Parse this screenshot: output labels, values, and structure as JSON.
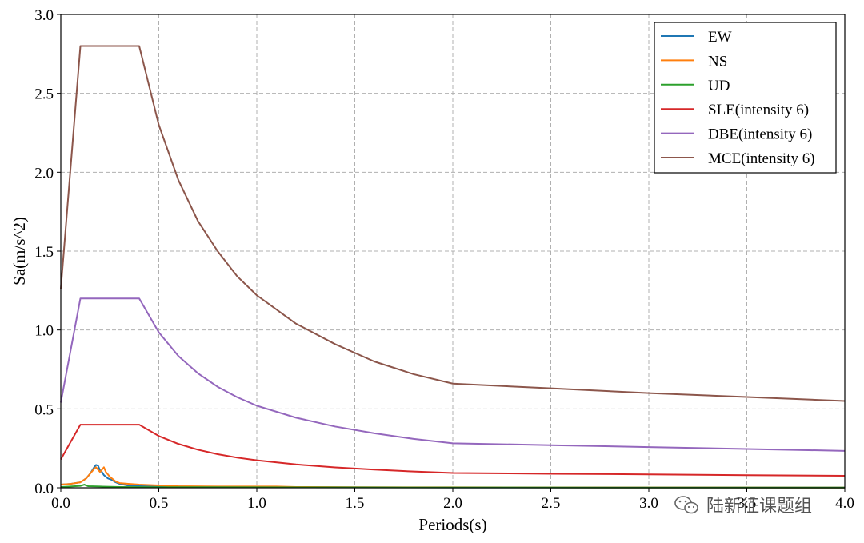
{
  "chart_data": {
    "type": "line",
    "xlabel": "Periods(s)",
    "ylabel": "Sa(m/s^2)",
    "xlim": [
      0.0,
      4.0
    ],
    "ylim": [
      0.0,
      3.0
    ],
    "x_ticks": [
      "0.0",
      "0.5",
      "1.0",
      "1.5",
      "2.0",
      "2.5",
      "3.0",
      "3.5",
      "4.0"
    ],
    "y_ticks": [
      "0.0",
      "0.5",
      "1.0",
      "1.5",
      "2.0",
      "2.5",
      "3.0"
    ],
    "grid": true,
    "legend_position": "top-right",
    "series": [
      {
        "name": "EW",
        "color": "#1f77b4",
        "x": [
          0.0,
          0.05,
          0.1,
          0.13,
          0.15,
          0.17,
          0.18,
          0.19,
          0.2,
          0.21,
          0.22,
          0.24,
          0.26,
          0.28,
          0.3,
          0.34,
          0.4,
          0.5,
          0.6,
          0.8,
          1.0,
          1.2,
          1.5,
          2.0,
          3.0,
          4.0
        ],
        "y": [
          0.02,
          0.025,
          0.035,
          0.06,
          0.09,
          0.13,
          0.145,
          0.14,
          0.11,
          0.1,
          0.08,
          0.06,
          0.05,
          0.035,
          0.025,
          0.015,
          0.012,
          0.01,
          0.008,
          0.006,
          0.005,
          0.004,
          0.003,
          0.002,
          0.002,
          0.001
        ]
      },
      {
        "name": "NS",
        "color": "#ff7f0e",
        "x": [
          0.0,
          0.05,
          0.1,
          0.13,
          0.15,
          0.17,
          0.18,
          0.2,
          0.22,
          0.23,
          0.25,
          0.28,
          0.3,
          0.35,
          0.4,
          0.5,
          0.6,
          0.8,
          1.0,
          1.1,
          1.2,
          1.5,
          2.0,
          3.0,
          4.0
        ],
        "y": [
          0.02,
          0.025,
          0.035,
          0.06,
          0.09,
          0.12,
          0.13,
          0.1,
          0.13,
          0.1,
          0.07,
          0.04,
          0.03,
          0.025,
          0.02,
          0.015,
          0.01,
          0.008,
          0.008,
          0.008,
          0.005,
          0.004,
          0.003,
          0.002,
          0.001
        ]
      },
      {
        "name": "UD",
        "color": "#2ca02c",
        "x": [
          0.0,
          0.05,
          0.1,
          0.12,
          0.14,
          0.2,
          0.3,
          0.5,
          1.0,
          2.0,
          3.0,
          4.0
        ],
        "y": [
          0.005,
          0.008,
          0.012,
          0.02,
          0.01,
          0.008,
          0.005,
          0.004,
          0.003,
          0.002,
          0.001,
          0.001
        ]
      },
      {
        "name": "SLE(intensity 6)",
        "color": "#d62728",
        "x": [
          0.0,
          0.1,
          0.4,
          0.5,
          0.6,
          0.7,
          0.8,
          0.9,
          1.0,
          1.2,
          1.4,
          1.6,
          1.8,
          2.0,
          2.5,
          3.0,
          3.5,
          4.0
        ],
        "y": [
          0.18,
          0.4,
          0.4,
          0.328,
          0.278,
          0.241,
          0.213,
          0.191,
          0.174,
          0.148,
          0.129,
          0.115,
          0.103,
          0.094,
          0.089,
          0.085,
          0.08,
          0.076
        ]
      },
      {
        "name": "DBE(intensity 6)",
        "color": "#9467bd",
        "x": [
          0.0,
          0.1,
          0.4,
          0.5,
          0.6,
          0.7,
          0.8,
          0.9,
          1.0,
          1.2,
          1.4,
          1.6,
          1.8,
          2.0,
          2.5,
          3.0,
          3.5,
          4.0
        ],
        "y": [
          0.54,
          1.2,
          1.2,
          0.985,
          0.835,
          0.725,
          0.64,
          0.574,
          0.52,
          0.444,
          0.388,
          0.345,
          0.31,
          0.282,
          0.27,
          0.258,
          0.246,
          0.234
        ]
      },
      {
        "name": "MCE(intensity 6)",
        "color": "#8c564b",
        "x": [
          0.0,
          0.1,
          0.4,
          0.5,
          0.6,
          0.7,
          0.8,
          0.9,
          1.0,
          1.2,
          1.4,
          1.6,
          1.8,
          2.0,
          2.5,
          3.0,
          3.5,
          4.0
        ],
        "y": [
          1.26,
          2.8,
          2.8,
          2.3,
          1.95,
          1.69,
          1.5,
          1.34,
          1.22,
          1.04,
          0.91,
          0.8,
          0.72,
          0.66,
          0.63,
          0.6,
          0.575,
          0.55
        ]
      }
    ]
  },
  "watermark": {
    "icon": "wechat-icon",
    "text": "陆新征课题组"
  }
}
